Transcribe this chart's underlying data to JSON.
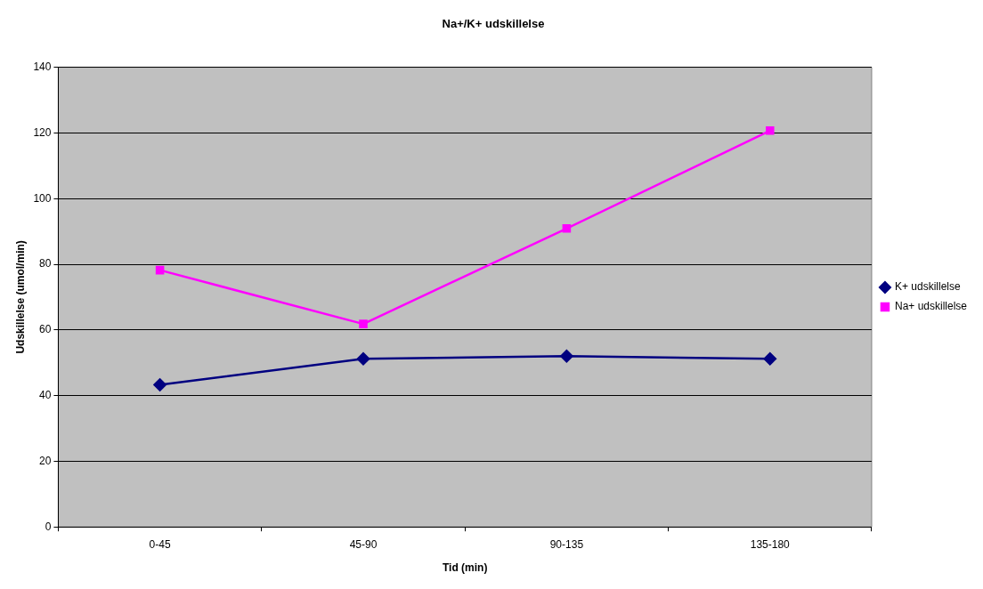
{
  "chart_data": {
    "type": "line",
    "title": "Na+/K+ udskillelse",
    "xlabel": "Tid (min)",
    "ylabel": "Udskillelse (umol/min)",
    "categories": [
      "0-45",
      "45-90",
      "90-135",
      "135-180"
    ],
    "series": [
      {
        "name": "K+ udskillelse",
        "color": "#000080",
        "values": [
          43.3,
          51.2,
          52.0,
          51.2
        ],
        "marker": "diamond"
      },
      {
        "name": "Na+ udskillelse",
        "color": "#ff00ff",
        "values": [
          78.2,
          61.8,
          90.9,
          120.7
        ],
        "marker": "square"
      }
    ],
    "ylim": [
      0,
      140
    ],
    "yticks": [
      0,
      20,
      40,
      60,
      80,
      100,
      120,
      140
    ],
    "grid": "y",
    "legend": "right",
    "line_style": "solid"
  }
}
